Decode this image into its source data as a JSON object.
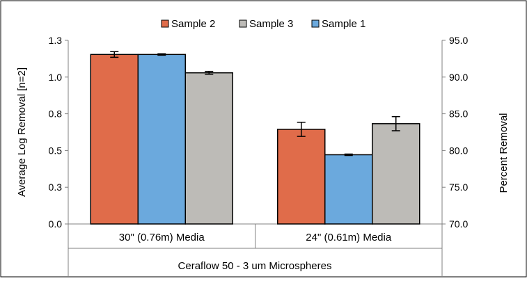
{
  "chart_data": {
    "type": "bar",
    "categories": [
      "30\" (0.76m) Media",
      "24\" (0.61m) Media"
    ],
    "group_label": "Ceraflow 50 - 3 um Microspheres",
    "ylabel": "Average Log Removal [n=2]",
    "ylabel_right": "Percent Removal",
    "ylim": [
      0.0,
      1.3
    ],
    "ylim_right": [
      70.0,
      95.0
    ],
    "yticks": [
      "0.0",
      "0.3",
      "0.5",
      "0.8",
      "1.0",
      "1.3"
    ],
    "yticks_values": [
      0.0,
      0.26,
      0.52,
      0.78,
      1.04,
      1.3
    ],
    "yticks_right": [
      "70.0",
      "75.0",
      "80.0",
      "85.0",
      "90.0",
      "95.0"
    ],
    "legend_position": "top",
    "legend_order": [
      "Sample 2",
      "Sample 3",
      "Sample 1"
    ],
    "grid": false,
    "series": [
      {
        "name": "Sample 2",
        "color": "#e06c4a",
        "values": [
          1.2,
          0.67
        ],
        "errors": [
          0.02,
          0.05
        ]
      },
      {
        "name": "Sample 1",
        "color": "#6ba9dd",
        "values": [
          1.2,
          0.49
        ],
        "errors": [
          0.005,
          0.005
        ]
      },
      {
        "name": "Sample 3",
        "color": "#bdbbb7",
        "values": [
          1.07,
          0.71
        ],
        "errors": [
          0.01,
          0.05
        ]
      }
    ]
  }
}
